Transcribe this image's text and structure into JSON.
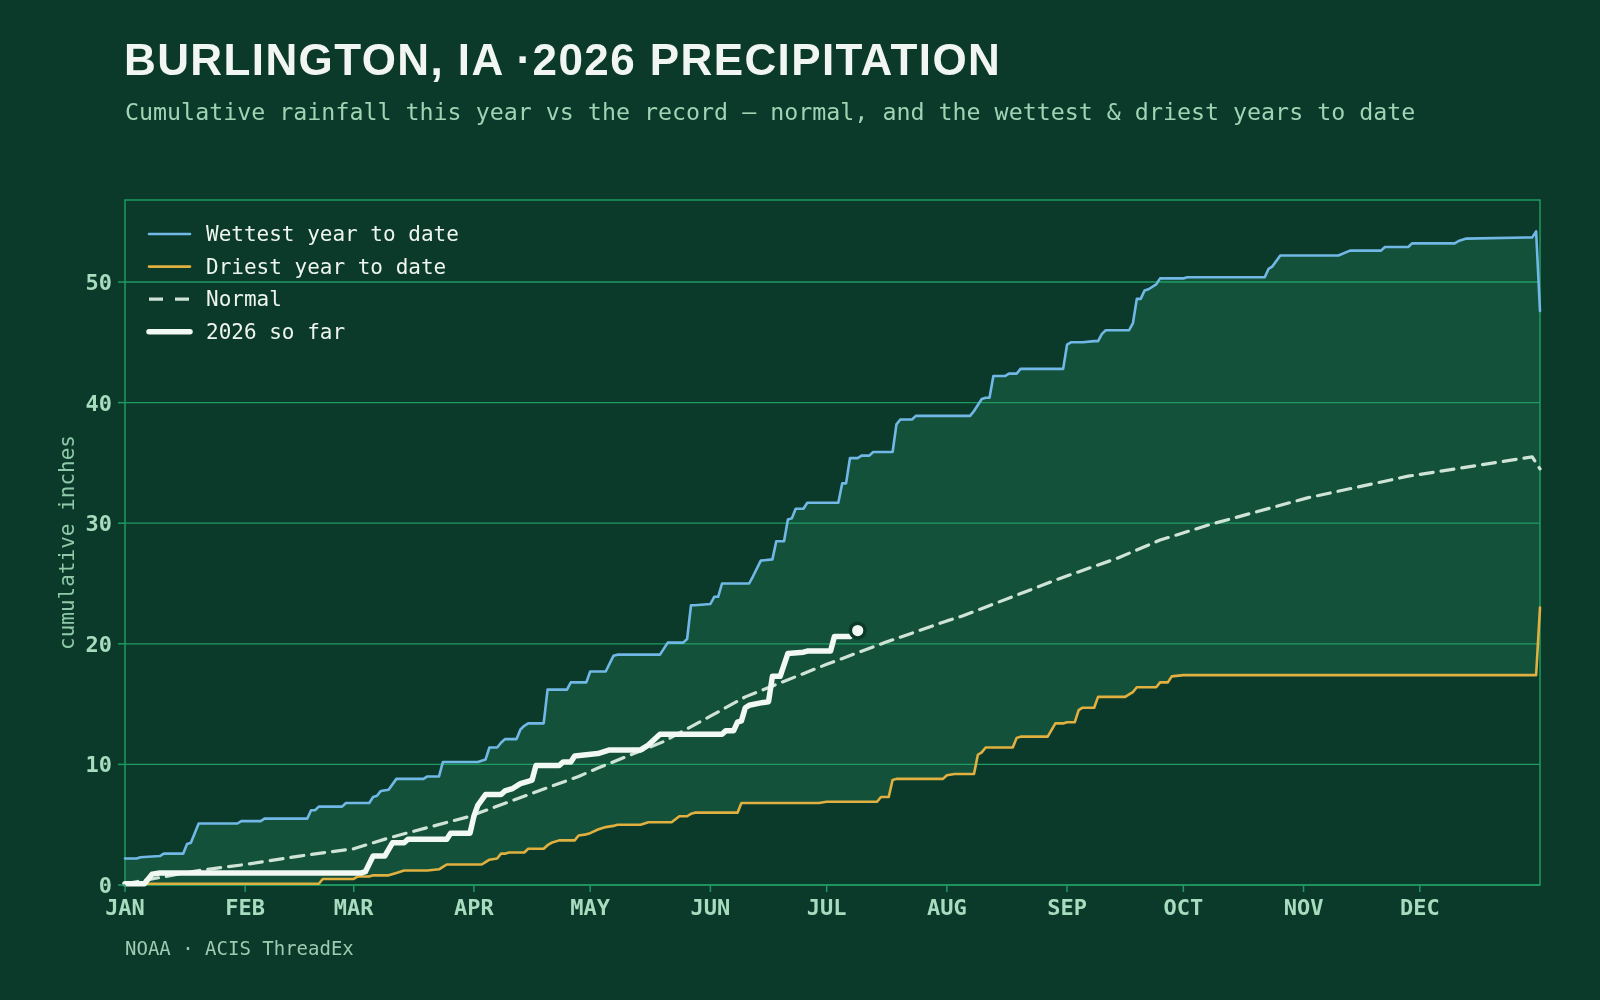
{
  "chart_data": {
    "type": "line",
    "title": "BURLINGTON, IA ·2026 PRECIPITATION",
    "subtitle": "Cumulative rainfall this year vs the record — normal, and the wettest & driest years to date",
    "ylabel": "cumulative inches",
    "annotations": [
      "NOAA · ACIS ThreadEx"
    ],
    "x": [
      "2026-01-01",
      "2026-01-04",
      "2026-01-05",
      "2026-01-10",
      "2026-01-11",
      "2026-01-16",
      "2026-01-17",
      "2026-01-18",
      "2026-01-20",
      "2026-01-30",
      "2026-01-31",
      "2026-02-05",
      "2026-02-06",
      "2026-02-17",
      "2026-02-18",
      "2026-02-19",
      "2026-02-20",
      "2026-02-21",
      "2026-02-26",
      "2026-02-27",
      "2026-03-01",
      "2026-03-02",
      "2026-03-05",
      "2026-03-06",
      "2026-03-07",
      "2026-03-08",
      "2026-03-10",
      "2026-03-12",
      "2026-03-14",
      "2026-03-18",
      "2026-03-19",
      "2026-03-20",
      "2026-03-23",
      "2026-03-24",
      "2026-03-25",
      "2026-04-02",
      "2026-04-03",
      "2026-04-04",
      "2026-04-05",
      "2026-04-07",
      "2026-04-08",
      "2026-04-09",
      "2026-04-10",
      "2026-04-12",
      "2026-04-13",
      "2026-04-14",
      "2026-04-15",
      "2026-04-19",
      "2026-04-20",
      "2026-04-21",
      "2026-04-23",
      "2026-04-25",
      "2026-04-26",
      "2026-04-27",
      "2026-04-28",
      "2026-04-30",
      "2026-05-01",
      "2026-05-03",
      "2026-05-05",
      "2026-05-07",
      "2026-05-08",
      "2026-05-14",
      "2026-05-16",
      "2026-05-19",
      "2026-05-21",
      "2026-05-22",
      "2026-05-24",
      "2026-05-25",
      "2026-05-26",
      "2026-05-27",
      "2026-05-28",
      "2026-06-01",
      "2026-06-02",
      "2026-06-03",
      "2026-06-04",
      "2026-06-08",
      "2026-06-09",
      "2026-06-11",
      "2026-06-12",
      "2026-06-14",
      "2026-06-17",
      "2026-06-18",
      "2026-06-20",
      "2026-06-21",
      "2026-06-22",
      "2026-06-23",
      "2026-06-25",
      "2026-06-26",
      "2026-06-29",
      "2026-07-01",
      "2026-07-04",
      "2026-07-05",
      "2026-07-06",
      "2026-07-07",
      "2026-07-09",
      "2026-07-10",
      "2026-07-12",
      "2026-07-13",
      "2026-07-14",
      "2026-07-15",
      "2026-07-17",
      "2026-07-18",
      "2026-07-19",
      "2026-07-20",
      "2026-07-23",
      "2026-07-24",
      "2026-07-31",
      "2026-08-01",
      "2026-08-03",
      "2026-08-07",
      "2026-08-08",
      "2026-08-09",
      "2026-08-10",
      "2026-08-11",
      "2026-08-12",
      "2026-08-13",
      "2026-08-16",
      "2026-08-17",
      "2026-08-18",
      "2026-08-19",
      "2026-08-20",
      "2026-08-27",
      "2026-08-29",
      "2026-08-31",
      "2026-09-01",
      "2026-09-02",
      "2026-09-03",
      "2026-09-04",
      "2026-09-05",
      "2026-09-08",
      "2026-09-09",
      "2026-09-10",
      "2026-09-11",
      "2026-09-16",
      "2026-09-17",
      "2026-09-18",
      "2026-09-19",
      "2026-09-20",
      "2026-09-21",
      "2026-09-22",
      "2026-09-24",
      "2026-09-25",
      "2026-09-27",
      "2026-09-28",
      "2026-10-01",
      "2026-10-02",
      "2026-10-22",
      "2026-10-23",
      "2026-10-24",
      "2026-10-26",
      "2026-11-10",
      "2026-11-13",
      "2026-11-21",
      "2026-11-22",
      "2026-11-28",
      "2026-11-29",
      "2026-12-10",
      "2026-12-11",
      "2026-12-13",
      "2026-12-30",
      "2026-12-31",
      "2027-01-01"
    ],
    "series": [
      {
        "name": "Wettest year to date",
        "color": "#72b8e6",
        "values": [
          2.2,
          2.2,
          2.3,
          2.4,
          2.6,
          2.6,
          3.4,
          3.5,
          5.1,
          5.1,
          5.3,
          5.3,
          5.5,
          5.5,
          6.2,
          6.2,
          6.5,
          6.5,
          6.5,
          6.8,
          6.8,
          6.8,
          6.8,
          7.3,
          7.4,
          7.8,
          7.9,
          8.8,
          8.8,
          8.8,
          8.8,
          9.0,
          9.0,
          10.2,
          10.2,
          10.2,
          10.3,
          10.4,
          11.4,
          11.4,
          11.8,
          12.1,
          12.1,
          12.1,
          12.9,
          13.2,
          13.4,
          13.4,
          16.2,
          16.2,
          16.2,
          16.2,
          16.8,
          16.8,
          16.8,
          16.8,
          17.7,
          17.7,
          17.7,
          19.0,
          19.1,
          19.1,
          19.1,
          19.1,
          20.1,
          20.1,
          20.1,
          20.1,
          20.4,
          23.2,
          23.2,
          23.3,
          23.9,
          23.9,
          25.0,
          25.0,
          25.0,
          25.0,
          25.6,
          26.9,
          27.0,
          28.5,
          28.5,
          30.3,
          30.4,
          31.2,
          31.2,
          31.7,
          31.7,
          31.7,
          31.7,
          33.3,
          33.3,
          35.4,
          35.4,
          35.6,
          35.6,
          35.9,
          35.9,
          35.9,
          35.9,
          35.9,
          38.2,
          38.6,
          38.6,
          38.9,
          38.9,
          38.9,
          38.9,
          38.9,
          39.3,
          39.8,
          40.3,
          40.4,
          40.4,
          42.2,
          42.2,
          42.4,
          42.4,
          42.4,
          42.8,
          42.8,
          42.8,
          42.8,
          44.8,
          45.0,
          45.0,
          45.0,
          45.0,
          45.1,
          45.1,
          45.7,
          46.0,
          46.0,
          46.0,
          46.6,
          48.6,
          48.6,
          49.3,
          49.4,
          49.8,
          50.3,
          50.3,
          50.3,
          50.3,
          50.4,
          50.4,
          51.1,
          51.3,
          52.2,
          52.2,
          52.6,
          52.6,
          52.9,
          52.9,
          53.2,
          53.2,
          53.4,
          53.6,
          53.7,
          54.2,
          47.6
        ],
        "lower": [
          0.1,
          0.1,
          0.1,
          0.1,
          0.1,
          0.1,
          0.1,
          0.1,
          0.1,
          0.1,
          0.1,
          0.1,
          0.1,
          0.1,
          0.1,
          0.1,
          0.1,
          0.5,
          0.5,
          0.5,
          0.5,
          0.7,
          0.7,
          0.8,
          0.8,
          0.8,
          0.8,
          1.0,
          1.2,
          1.2,
          1.2,
          1.2,
          1.3,
          1.5,
          1.7,
          1.7,
          1.7,
          1.9,
          2.1,
          2.2,
          2.6,
          2.6,
          2.7,
          2.7,
          2.7,
          2.7,
          3.0,
          3.0,
          3.3,
          3.5,
          3.7,
          3.7,
          3.7,
          3.7,
          4.1,
          4.2,
          4.3,
          4.6,
          4.8,
          4.9,
          5.0,
          5.0,
          5.2,
          5.2,
          5.2,
          5.2,
          5.7,
          5.7,
          5.7,
          5.9,
          6.0,
          6.0,
          6.0,
          6.0,
          6.0,
          6.0,
          6.8,
          6.8,
          6.8,
          6.8,
          6.8,
          6.8,
          6.8,
          6.8,
          6.8,
          6.8,
          6.8,
          6.8,
          6.8,
          6.9,
          6.9,
          6.9,
          6.9,
          6.9,
          6.9,
          6.9,
          6.9,
          6.9,
          6.9,
          7.3,
          7.3,
          8.7,
          8.8,
          8.8,
          8.8,
          8.8,
          8.8,
          9.1,
          9.2,
          9.2,
          9.2,
          10.8,
          11.0,
          11.4,
          11.4,
          11.4,
          11.4,
          11.4,
          11.4,
          12.2,
          12.3,
          12.3,
          13.4,
          13.4,
          13.5,
          13.5,
          13.5,
          14.5,
          14.7,
          14.7,
          15.6,
          15.6,
          15.6,
          15.6,
          15.8,
          16.0,
          16.4,
          16.4,
          16.4,
          16.4,
          16.4,
          16.8,
          16.8,
          17.3,
          17.4,
          17.4,
          17.4,
          17.4,
          17.4,
          17.4,
          17.4,
          17.4,
          17.4,
          17.4,
          17.4,
          17.4,
          17.4,
          17.4,
          17.4,
          17.4,
          17.4,
          23.0
        ],
        "upper": [
          2.2,
          2.2,
          2.3,
          2.4,
          2.6,
          2.6,
          3.4,
          3.5,
          5.1,
          5.1,
          5.3,
          5.3,
          5.5,
          5.5,
          6.2,
          6.2,
          6.5,
          6.5,
          6.5,
          6.8,
          6.8,
          6.8,
          6.8,
          7.3,
          7.4,
          7.8,
          7.9,
          8.8,
          8.8,
          8.8,
          8.8,
          9.0,
          9.0,
          10.2,
          10.2,
          10.2,
          10.3,
          10.4,
          11.4,
          11.4,
          11.8,
          12.1,
          12.1,
          12.1,
          12.9,
          13.2,
          13.4,
          13.4,
          16.2,
          16.2,
          16.2,
          16.2,
          16.8,
          16.8,
          16.8,
          16.8,
          17.7,
          17.7,
          17.7,
          19.0,
          19.1,
          19.1,
          19.1,
          19.1,
          20.1,
          20.1,
          20.1,
          20.1,
          20.4,
          23.2,
          23.2,
          23.3,
          23.9,
          23.9,
          25.0,
          25.0,
          25.0,
          25.0,
          25.6,
          26.9,
          27.0,
          28.5,
          28.5,
          30.3,
          30.4,
          31.2,
          31.2,
          31.7,
          31.7,
          31.7,
          31.7,
          33.3,
          33.3,
          35.4,
          35.4,
          35.6,
          35.6,
          35.9,
          35.9,
          35.9,
          35.9,
          35.9,
          38.2,
          38.6,
          38.6,
          38.9,
          38.9,
          38.9,
          38.9,
          38.9,
          39.3,
          39.8,
          40.3,
          40.4,
          40.4,
          42.2,
          42.2,
          42.4,
          42.4,
          42.4,
          42.8,
          42.8,
          42.8,
          42.8,
          44.8,
          45.0,
          45.0,
          45.0,
          45.0,
          45.1,
          45.1,
          45.7,
          46.0,
          46.0,
          46.0,
          46.6,
          48.6,
          48.6,
          49.3,
          49.4,
          49.8,
          50.3,
          50.3,
          50.3,
          50.3,
          50.4,
          50.4,
          51.1,
          51.3,
          52.2,
          52.2,
          52.6,
          52.6,
          52.9,
          52.9,
          53.2,
          53.2,
          53.4,
          53.6,
          53.7,
          54.2,
          47.6
        ]
      },
      {
        "name": "Driest year to date",
        "color": "#e0b040",
        "values": [
          0.1,
          0.1,
          0.1,
          0.1,
          0.1,
          0.1,
          0.1,
          0.1,
          0.1,
          0.1,
          0.1,
          0.1,
          0.1,
          0.1,
          0.1,
          0.1,
          0.1,
          0.5,
          0.5,
          0.5,
          0.5,
          0.7,
          0.7,
          0.8,
          0.8,
          0.8,
          0.8,
          1.0,
          1.2,
          1.2,
          1.2,
          1.2,
          1.3,
          1.5,
          1.7,
          1.7,
          1.7,
          1.9,
          2.1,
          2.2,
          2.6,
          2.6,
          2.7,
          2.7,
          2.7,
          2.7,
          3.0,
          3.0,
          3.3,
          3.5,
          3.7,
          3.7,
          3.7,
          3.7,
          4.1,
          4.2,
          4.3,
          4.6,
          4.8,
          4.9,
          5.0,
          5.0,
          5.2,
          5.2,
          5.2,
          5.2,
          5.7,
          5.7,
          5.7,
          5.9,
          6.0,
          6.0,
          6.0,
          6.0,
          6.0,
          6.0,
          6.8,
          6.8,
          6.8,
          6.8,
          6.8,
          6.8,
          6.8,
          6.8,
          6.8,
          6.8,
          6.8,
          6.8,
          6.8,
          6.9,
          6.9,
          6.9,
          6.9,
          6.9,
          6.9,
          6.9,
          6.9,
          6.9,
          6.9,
          7.3,
          7.3,
          8.7,
          8.8,
          8.8,
          8.8,
          8.8,
          8.8,
          9.1,
          9.2,
          9.2,
          9.2,
          10.8,
          11.0,
          11.4,
          11.4,
          11.4,
          11.4,
          11.4,
          11.4,
          12.2,
          12.3,
          12.3,
          13.4,
          13.4,
          13.5,
          13.5,
          13.5,
          14.5,
          14.7,
          14.7,
          15.6,
          15.6,
          15.6,
          15.6,
          15.8,
          16.0,
          16.4,
          16.4,
          16.4,
          16.4,
          16.4,
          16.8,
          16.8,
          17.3,
          17.4,
          17.4,
          17.4,
          17.4,
          17.4,
          17.4,
          17.4,
          17.4,
          17.4,
          17.4,
          17.4,
          17.4,
          17.4,
          17.4,
          17.4,
          17.4,
          17.4,
          23.0
        ]
      },
      {
        "name": "Normal",
        "color": "#cfe3d6",
        "line_style": "dashed",
        "x": [
          "2026-01-01",
          "2026-01-20",
          "2026-02-01",
          "2026-02-15",
          "2026-03-01",
          "2026-03-10",
          "2026-03-31",
          "2026-04-16",
          "2026-04-28",
          "2026-05-03",
          "2026-05-20",
          "2026-06-01",
          "2026-06-10",
          "2026-07-01",
          "2026-07-16",
          "2026-08-01",
          "2026-08-05",
          "2026-08-30",
          "2026-09-14",
          "2026-09-25",
          "2026-10-08",
          "2026-11-02",
          "2026-11-28",
          "2026-12-30",
          "2027-01-01"
        ],
        "values": [
          0.1,
          1.2,
          1.7,
          2.4,
          3.0,
          3.9,
          5.7,
          7.6,
          9.0,
          9.7,
          11.9,
          14.0,
          15.6,
          18.3,
          20.1,
          21.9,
          22.3,
          25.4,
          27.1,
          28.6,
          29.9,
          32.1,
          33.9,
          35.5,
          34.5
        ]
      },
      {
        "name": "2026 so far",
        "color": "#f2f8f4",
        "x": [
          "2026-01-01",
          "2026-01-06",
          "2026-01-08",
          "2026-01-10",
          "2026-03-03",
          "2026-03-04",
          "2026-03-06",
          "2026-03-09",
          "2026-03-11",
          "2026-03-14",
          "2026-03-15",
          "2026-03-25",
          "2026-03-26",
          "2026-03-31",
          "2026-04-01",
          "2026-04-02",
          "2026-04-04",
          "2026-04-08",
          "2026-04-09",
          "2026-04-11",
          "2026-04-13",
          "2026-04-15",
          "2026-04-16",
          "2026-04-17",
          "2026-04-23",
          "2026-04-24",
          "2026-04-26",
          "2026-04-27",
          "2026-05-03",
          "2026-05-06",
          "2026-05-14",
          "2026-05-16",
          "2026-05-19",
          "2026-06-04",
          "2026-06-05",
          "2026-06-07",
          "2026-06-08",
          "2026-06-09",
          "2026-06-10",
          "2026-06-11",
          "2026-06-14",
          "2026-06-16",
          "2026-06-17",
          "2026-06-19",
          "2026-06-21",
          "2026-06-25",
          "2026-06-26",
          "2026-07-02",
          "2026-07-03",
          "2026-07-07",
          "2026-07-09"
        ],
        "values": [
          0.1,
          0.1,
          0.9,
          1.0,
          1.0,
          1.1,
          2.4,
          2.4,
          3.5,
          3.5,
          3.8,
          3.8,
          4.3,
          4.3,
          5.7,
          6.6,
          7.5,
          7.5,
          7.8,
          8.0,
          8.4,
          8.6,
          8.7,
          9.9,
          9.9,
          10.2,
          10.2,
          10.7,
          10.9,
          11.2,
          11.2,
          11.6,
          12.5,
          12.5,
          12.8,
          12.8,
          13.5,
          13.6,
          14.7,
          14.9,
          15.1,
          15.2,
          17.3,
          17.3,
          19.2,
          19.3,
          19.4,
          19.4,
          20.6,
          20.6,
          21.1
        ]
      },
      {
        "type": "scatter",
        "color": "#f2f8f4",
        "marker": "circle",
        "x": [
          "2026-07-09"
        ],
        "values": [
          21.1
        ]
      }
    ],
    "xlim": [
      "2026-01-01",
      "2027-01-01"
    ],
    "xticks": [
      {
        "value": "2026-01-01",
        "label": "JAN"
      },
      {
        "value": "2026-02-01",
        "label": "FEB"
      },
      {
        "value": "2026-03-01",
        "label": "MAR"
      },
      {
        "value": "2026-04-01",
        "label": "APR"
      },
      {
        "value": "2026-05-01",
        "label": "MAY"
      },
      {
        "value": "2026-06-01",
        "label": "JUN"
      },
      {
        "value": "2026-07-01",
        "label": "JUL"
      },
      {
        "value": "2026-08-01",
        "label": "AUG"
      },
      {
        "value": "2026-09-01",
        "label": "SEP"
      },
      {
        "value": "2026-10-01",
        "label": "OCT"
      },
      {
        "value": "2026-11-01",
        "label": "NOV"
      },
      {
        "value": "2026-12-01",
        "label": "DEC"
      }
    ],
    "ylim": [
      0,
      56.8
    ],
    "yticks": [
      0,
      10,
      20,
      30,
      40,
      50
    ],
    "grid": "y",
    "legend": "top left"
  }
}
